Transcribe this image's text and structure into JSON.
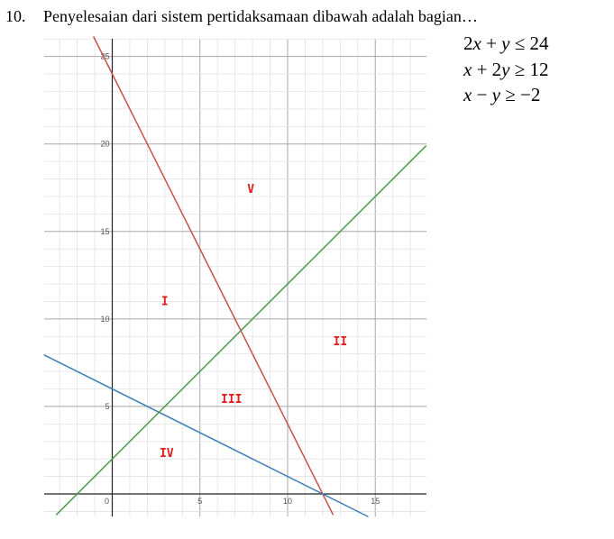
{
  "question": {
    "number": "10.",
    "text": "Penyelesaian dari sistem pertidaksamaan dibawah adalah bagian…"
  },
  "inequalities": [
    {
      "lhs_a": "2",
      "v1": "x",
      "op1": "+",
      "v2": "y",
      "rel": "≤",
      "rhs": "24"
    },
    {
      "lhs_a": "",
      "v1": "x",
      "op1": "+",
      "lhs_b": "2",
      "v2": "y",
      "rel": "≥",
      "rhs": "12"
    },
    {
      "lhs_a": "",
      "v1": "x",
      "op1": "−",
      "v2": "y",
      "rel": "≥",
      "rhs": "−2"
    }
  ],
  "chart_data": {
    "type": "line",
    "xlim": [
      -3.9,
      17.9
    ],
    "ylim": [
      -1.3,
      26.0
    ],
    "grid": true,
    "x_ticks": [
      0,
      5,
      10,
      15
    ],
    "y_ticks": [
      5,
      10,
      15,
      20,
      25
    ],
    "x_tick_labels": [
      "0",
      "5",
      "10",
      "15"
    ],
    "y_tick_labels": [
      "5",
      "10",
      "15",
      "20",
      "25"
    ],
    "series": [
      {
        "equation": "2x + y = 24",
        "slope": -2,
        "intercept": 24,
        "color": "#c8524a",
        "x_range": [
          -1.07,
          12.6
        ]
      },
      {
        "equation": "x + 2y = 12",
        "slope": -0.5,
        "intercept": 6,
        "color": "#3f7fb8",
        "x_range": [
          -3.9,
          14.6
        ]
      },
      {
        "equation": "x - y = -2",
        "slope": 1,
        "intercept": 2,
        "color": "#4e9a4a",
        "x_range": [
          -3.2,
          17.9
        ]
      }
    ],
    "region_labels": [
      {
        "label": "I",
        "x": 3.0,
        "y": 10.8
      },
      {
        "label": "II",
        "x": 13.0,
        "y": 8.5
      },
      {
        "label": "III",
        "x": 6.8,
        "y": 5.2
      },
      {
        "label": "IV",
        "x": 3.1,
        "y": 2.1
      },
      {
        "label": "V",
        "x": 7.9,
        "y": 17.2
      }
    ]
  }
}
